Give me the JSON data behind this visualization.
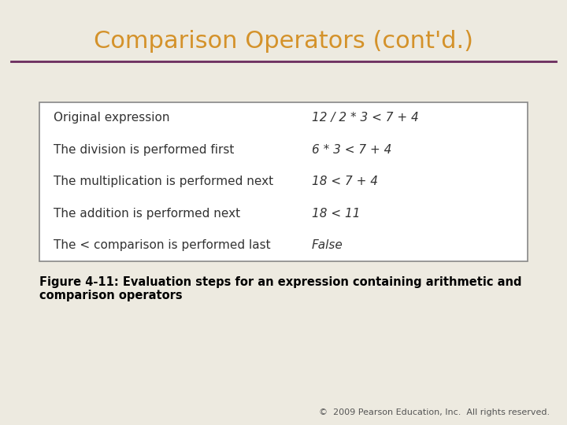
{
  "title": "Comparison Operators (cont'd.)",
  "title_color": "#D4922A",
  "title_fontsize": 22,
  "bg_color": "#EDEAE0",
  "separator_color": "#6B2C5E",
  "table_rows": [
    [
      "Original expression",
      "12 / 2 * 3 < 7 + 4"
    ],
    [
      "The division is performed first",
      "6 * 3 < 7 + 4"
    ],
    [
      "The multiplication is performed next",
      "18 < 7 + 4"
    ],
    [
      "The addition is performed next",
      "18 < 11"
    ],
    [
      "The < comparison is performed last",
      "False"
    ]
  ],
  "table_font_color": "#333333",
  "table_fontsize": 11,
  "table_box_color": "#FFFFFF",
  "table_border_color": "#888888",
  "caption": "Figure 4-11: Evaluation steps for an expression containing arithmetic and\ncomparison operators",
  "caption_fontsize": 10.5,
  "caption_color": "#000000",
  "copyright": "©  2009 Pearson Education, Inc.  All rights reserved.",
  "copyright_fontsize": 8,
  "copyright_color": "#555555"
}
